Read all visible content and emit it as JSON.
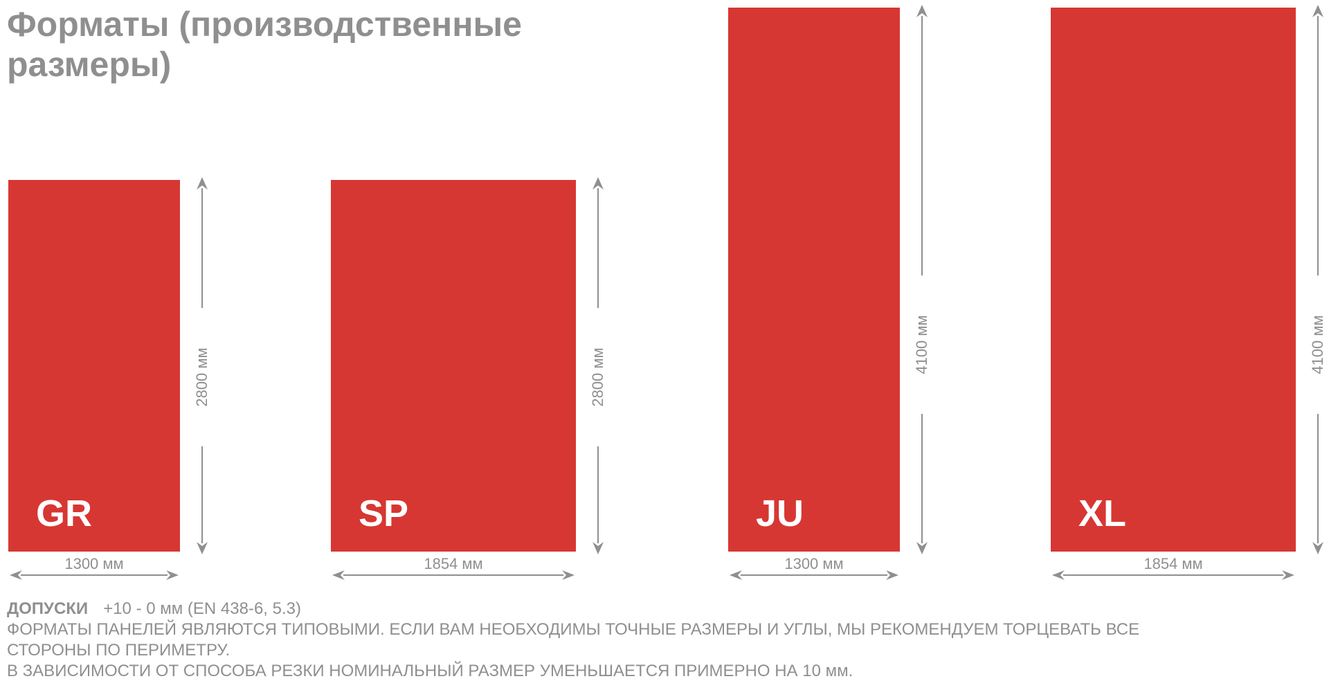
{
  "title": {
    "line1": "Форматы (производственные",
    "line2": "размеры)"
  },
  "colors": {
    "panel": "#d73732",
    "text": "#8f8f8f"
  },
  "panels": [
    {
      "code": "GR",
      "width_label": "1300 мм",
      "height_label": "2800 мм",
      "width_mm": 1300,
      "height_mm": 2800
    },
    {
      "code": "SP",
      "width_label": "1854 мм",
      "height_label": "2800 мм",
      "width_mm": 1854,
      "height_mm": 2800
    },
    {
      "code": "JU",
      "width_label": "1300 мм",
      "height_label": "4100 мм",
      "width_mm": 1300,
      "height_mm": 4100
    },
    {
      "code": "XL",
      "width_label": "1854 мм",
      "height_label": "4100 мм",
      "width_mm": 1854,
      "height_mm": 4100
    }
  ],
  "notes": {
    "tolerance_label": "ДОПУСКИ",
    "tolerance_value": "+10 - 0 мм (EN 438-6, 5.3)",
    "line2": "ФОРМАТЫ ПАНЕЛЕЙ ЯВЛЯЮТСЯ ТИПОВЫМИ. ЕСЛИ ВАМ НЕОБХОДИМЫ ТОЧНЫЕ РАЗМЕРЫ И УГЛЫ, МЫ РЕКОМЕНДУЕМ ТОРЦЕВАТЬ ВСЕ",
    "line3": "СТОРОНЫ ПО ПЕРИМЕТРУ.",
    "line4": "В ЗАВИСИМОСТИ ОТ СПОСОБА РЕЗКИ НОМИНАЛЬНЫЙ РАЗМЕР УМЕНЬШАЕТСЯ ПРИМЕРНО НА 10 мм."
  }
}
